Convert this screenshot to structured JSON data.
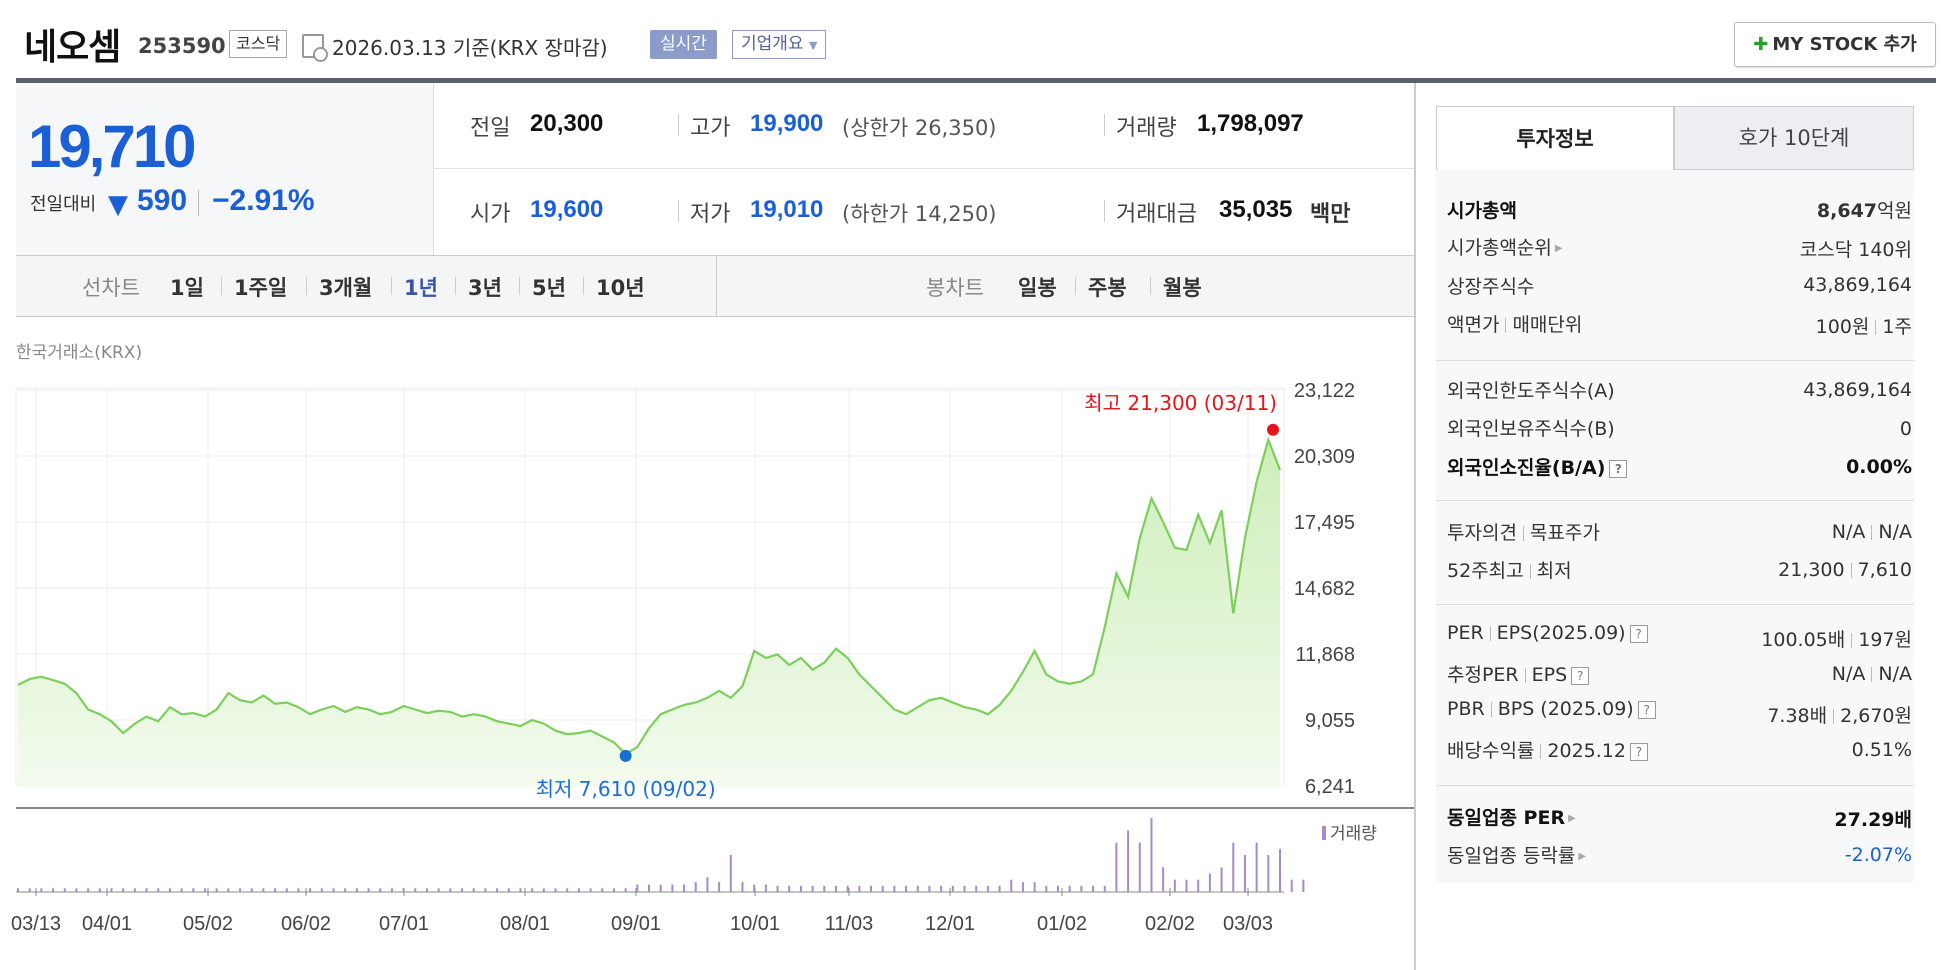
{
  "header": {
    "stock_name": "네오셈",
    "stock_code": "253590",
    "market": "코스닥",
    "base_date": "2026.03.13 기준(KRX 장마감)",
    "realtime": "실시간",
    "company_overview": "기업개요",
    "company_overview_icon": "chevron-down-icon",
    "mystock_button": "MY STOCK 추가",
    "mystock_icon": "plus-icon"
  },
  "price": {
    "current": "19,710",
    "diff_label": "전일대비",
    "diff_direction": "down",
    "diff_arrow": "▼",
    "diff_value": "590",
    "diff_rate": "−2.91%",
    "color_down": "#1a5fd6"
  },
  "summary": {
    "prev_close_label": "전일",
    "prev_close": "20,300",
    "high_label": "고가",
    "high": "19,900",
    "upper_limit": "(상한가 26,350)",
    "volume_label": "거래량",
    "volume": "1,798,097",
    "open_label": "시가",
    "open": "19,600",
    "low_label": "저가",
    "low": "19,010",
    "lower_limit": "(하한가 14,250)",
    "trade_value_label": "거래대금",
    "trade_value": "35,035",
    "trade_value_unit": "백만"
  },
  "period_bar": {
    "line_label": "선차트",
    "line_periods": [
      "1일",
      "1주일",
      "3개월",
      "1년",
      "3년",
      "5년",
      "10년"
    ],
    "active_period": "1년",
    "candle_label": "봉차트",
    "candle_periods": [
      "일봉",
      "주봉",
      "월봉"
    ]
  },
  "chart_data": {
    "type": "area",
    "title": "",
    "source_label": "한국거래소(KRX)",
    "xlabel": "",
    "ylabel": "",
    "x_tick_labels": [
      "03/13",
      "04/01",
      "05/02",
      "06/02",
      "07/01",
      "08/01",
      "09/01",
      "10/01",
      "11/03",
      "12/01",
      "01/02",
      "02/02",
      "03/03"
    ],
    "y_tick_labels": [
      "23,122",
      "20,309",
      "17,495",
      "14,682",
      "11,868",
      "9,055",
      "6,241"
    ],
    "ylim": [
      6241,
      23122
    ],
    "max_annotation": "최고 21,300 (03/11)",
    "min_annotation": "최저 7,610 (09/02)",
    "max_point": {
      "x": "03/11",
      "y": 21300
    },
    "min_point": {
      "x": "09/02",
      "y": 7610
    },
    "grid": true,
    "colors": {
      "line": "#7ccf5a",
      "fill": "#e6f7dc",
      "max": "#e8141c",
      "min": "#1a6fd6",
      "volume": "#a78bc9"
    },
    "series": [
      {
        "values": [
          10550,
          10800,
          10900,
          10750,
          10600,
          10200,
          9500,
          9300,
          9000,
          8500,
          8900,
          9200,
          9000,
          9600,
          9300,
          9350,
          9200,
          9500,
          10200,
          9900,
          9800,
          10100,
          9750,
          9800,
          9600,
          9300,
          9500,
          9650,
          9400,
          9600,
          9500,
          9300,
          9400,
          9650,
          9500,
          9350,
          9450,
          9400,
          9200,
          9300,
          9200,
          9000,
          8900,
          8800,
          9050,
          8900,
          8600,
          8450,
          8500,
          8600,
          8350,
          8100,
          7610,
          7900,
          8700,
          9300,
          9500,
          9700,
          9800,
          10000,
          10300,
          10000,
          10500,
          12000,
          11700,
          11850,
          11400,
          11700,
          11200,
          11500,
          12100,
          11700,
          11000,
          10500,
          10000,
          9500,
          9300,
          9600,
          9900,
          10000,
          9800,
          9600,
          9500,
          9300,
          9700,
          10300,
          11100,
          12000,
          11000,
          10700,
          10600,
          10700,
          11000,
          13000,
          15300,
          14300,
          16800,
          18500,
          17500,
          16400,
          16300,
          17800,
          16600,
          18000,
          13600,
          16800,
          19200,
          21000,
          19710
        ]
      }
    ],
    "volume": {
      "label": "거래량",
      "values": [
        3,
        3,
        3,
        3,
        3,
        3,
        3,
        3,
        3,
        3,
        3,
        3,
        3,
        3,
        3,
        3,
        3,
        3,
        3,
        3,
        3,
        3,
        3,
        3,
        3,
        3,
        3,
        3,
        3,
        3,
        3,
        3,
        3,
        3,
        3,
        3,
        3,
        3,
        3,
        3,
        3,
        3,
        3,
        3,
        3,
        3,
        3,
        3,
        3,
        3,
        3,
        3,
        3,
        6,
        6,
        6,
        6,
        6,
        8,
        12,
        8,
        30,
        8,
        6,
        6,
        5,
        5,
        5,
        5,
        5,
        5,
        5,
        5,
        5,
        5,
        5,
        5,
        5,
        5,
        5,
        5,
        5,
        5,
        5,
        5,
        10,
        8,
        8,
        5,
        5,
        5,
        5,
        5,
        5,
        40,
        50,
        40,
        60,
        20,
        10,
        10,
        10,
        15,
        20,
        40,
        30,
        40,
        30,
        35,
        10,
        10
      ]
    }
  },
  "side_panel": {
    "tab_active": "투자정보",
    "tab_inactive": "호가 10단계",
    "market_cap_label": "시가총액",
    "market_cap_num": "8,647",
    "market_cap_unit": "억원",
    "market_cap_rank_label": "시가총액순위",
    "market_cap_rank": "코스닥 140위",
    "listed_shares_label": "상장주식수",
    "listed_shares": "43,869,164",
    "par_label": "액면가",
    "unit_label": "매매단위",
    "par": "100원",
    "unit": "1주",
    "foreign_limit_label": "외국인한도주식수(A)",
    "foreign_limit": "43,869,164",
    "foreign_holding_label": "외국인보유주식수(B)",
    "foreign_holding": "0",
    "foreign_rate_label": "외국인소진율(B/A)",
    "foreign_rate": "0.00%",
    "opinion_label": "투자의견",
    "target_label": "목표주가",
    "opinion": "N/A",
    "target": "N/A",
    "week52_high_label": "52주최고",
    "week52_low_label": "최저",
    "week52_high": "21,300",
    "week52_low": "7,610",
    "per_label": "PER",
    "eps_label": "EPS(2025.09)",
    "per": "100.05배",
    "eps": "197원",
    "est_per_label": "추정PER",
    "est_eps_label": "EPS",
    "est_per": "N/A",
    "est_eps": "N/A",
    "pbr_label": "PBR",
    "bps_label": "BPS (2025.09)",
    "pbr": "7.38배",
    "bps": "2,670원",
    "dividend_label": "배당수익률",
    "dividend_date": "2025.12",
    "dividend": "0.51%",
    "sector_per_label": "동일업종 PER",
    "sector_per": "27.29배",
    "sector_change_label": "동일업종 등락률",
    "sector_change": "-2.07%"
  }
}
